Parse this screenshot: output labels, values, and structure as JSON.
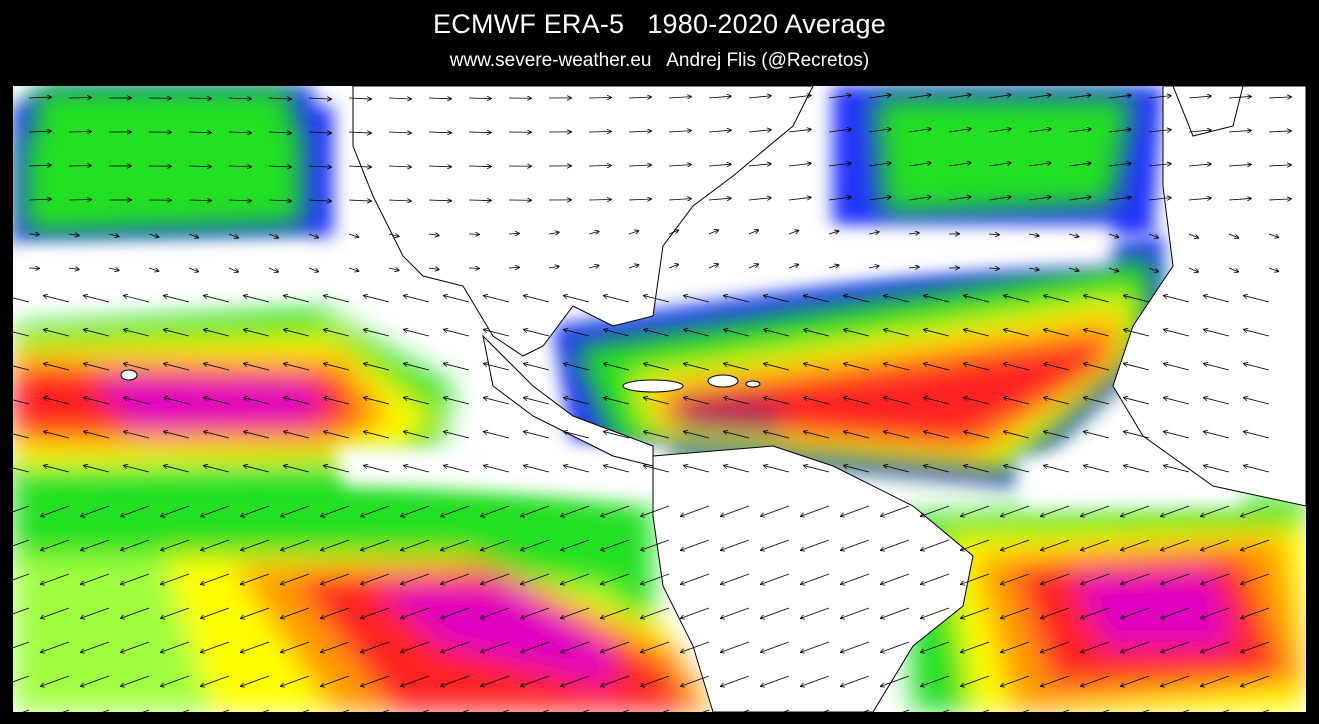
{
  "header": {
    "title": "ECMWF ERA-5   1980-2020 Average",
    "subtitle": "www.severe-weather.eu   Andrej Flis (@Recretos)"
  },
  "map": {
    "region": "North Atlantic, Americas and Eastern Pacific",
    "field": "wind speed with wind direction arrows",
    "colors": {
      "background": "#000000",
      "calm": "#ffffff",
      "light_blue": "#c8d8ff",
      "blue": "#2030ff",
      "green": "#20e020",
      "light_green": "#a0ff40",
      "yellow": "#ffff00",
      "orange": "#ff9900",
      "red": "#ff2020",
      "magenta": "#e000c0",
      "dark_magenta": "#a00060",
      "land_outline": "#000000",
      "arrow": "#000000"
    }
  }
}
